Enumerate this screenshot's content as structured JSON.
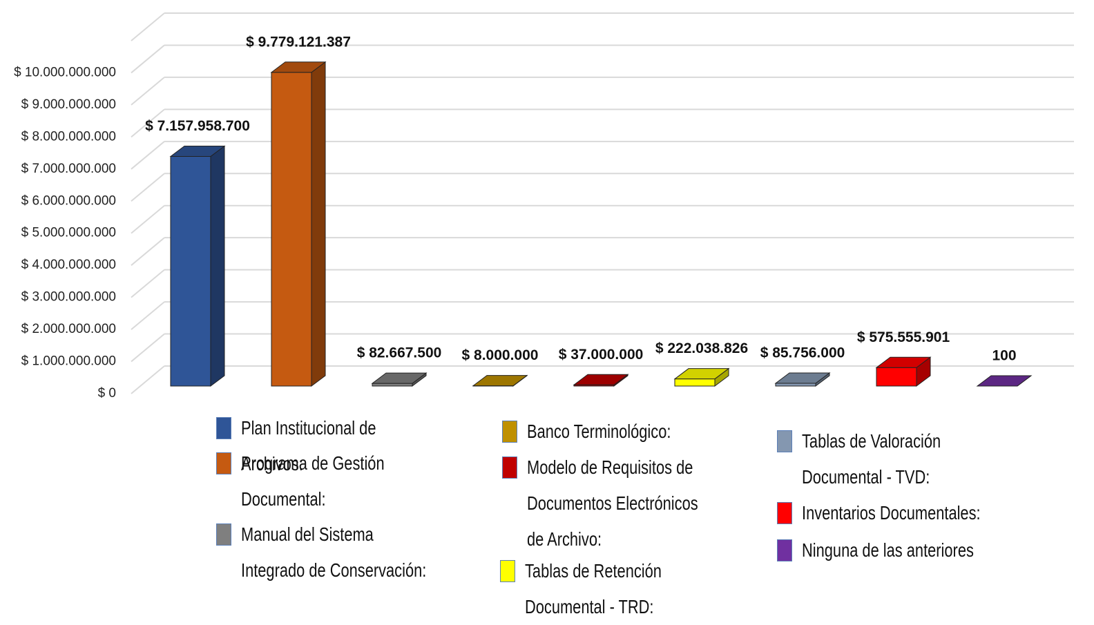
{
  "chart_data": {
    "type": "bar3d",
    "categories": [
      "Plan Institucional de Archivos:",
      "Programa de Gestión Documental:",
      "Manual del Sistema Integrado de Conservación:",
      "Banco Terminológico:",
      "Modelo de Requisitos de Documentos Electrónicos de Archivo:",
      "Tablas de Retención Documental - TRD:",
      "Tablas de Valoración Documental - TVD:",
      "Inventarios Documentales:",
      "Ninguna de las anteriores"
    ],
    "values": [
      7157958700,
      9779121387,
      82667500,
      8000000,
      37000000,
      222038826,
      85756000,
      575555901,
      100
    ],
    "value_labels": [
      "$ 7.157.958.700",
      "$ 9.779.121.387",
      "$ 82.667.500",
      "$ 8.000.000",
      "$ 37.000.000",
      "$ 222.038.826",
      "$ 85.756.000",
      "$ 575.555.901",
      "100"
    ],
    "colors": [
      "#2f5597",
      "#c55a11",
      "#7f7f7f",
      "#bf9000",
      "#c00000",
      "#ffff00",
      "#8497b0",
      "#ff0000",
      "#7030a0"
    ],
    "ylim": [
      0,
      11000000000
    ],
    "yticks": [
      {
        "value": 0,
        "label": "$ 0"
      },
      {
        "value": 1000000000,
        "label": "$ 1.000.000.000"
      },
      {
        "value": 2000000000,
        "label": "$ 2.000.000.000"
      },
      {
        "value": 3000000000,
        "label": "$ 3.000.000.000"
      },
      {
        "value": 4000000000,
        "label": "$ 4.000.000.000"
      },
      {
        "value": 5000000000,
        "label": "$ 5.000.000.000"
      },
      {
        "value": 6000000000,
        "label": "$ 6.000.000.000"
      },
      {
        "value": 7000000000,
        "label": "$ 7.000.000.000"
      },
      {
        "value": 8000000000,
        "label": "$ 8.000.000.000"
      },
      {
        "value": 9000000000,
        "label": "$ 9.000.000.000"
      },
      {
        "value": 10000000000,
        "label": "$ 10.000.000.000"
      }
    ],
    "grid": true
  }
}
